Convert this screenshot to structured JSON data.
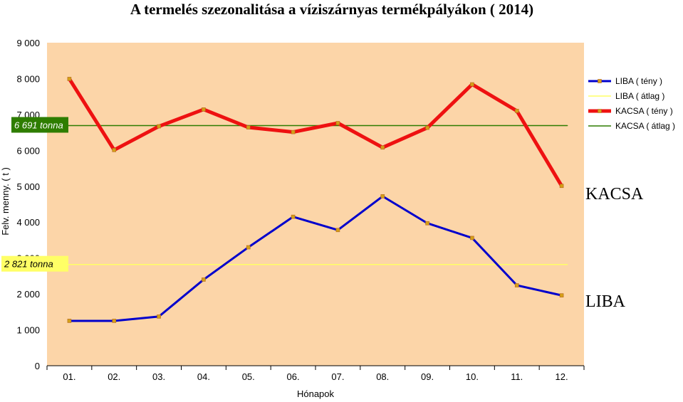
{
  "chart_data": {
    "type": "line",
    "title": "A termelés szezonalitása a víziszárnyas termékpályákon ( 2014)",
    "xlabel": "Hónapok",
    "ylabel": "Felv. menny. ( t )",
    "categories": [
      "01.",
      "02.",
      "03.",
      "04.",
      "05.",
      "06.",
      "07.",
      "08.",
      "09.",
      "10.",
      "11.",
      "12."
    ],
    "ylim": [
      0,
      9000
    ],
    "yticks": [
      0,
      1000,
      2000,
      3000,
      4000,
      5000,
      6000,
      7000,
      8000,
      9000
    ],
    "ytick_labels": [
      "0",
      "1 000",
      "2 000",
      "3 000",
      "4 000",
      "5 000",
      "6 000",
      "7 000",
      "8 000",
      "9 000"
    ],
    "plot_background": "#fcd5a8",
    "series": [
      {
        "name": "LIBA ( tény )",
        "values": [
          1250,
          1250,
          1370,
          2400,
          3300,
          4150,
          3780,
          4720,
          3970,
          3560,
          2240,
          1960
        ],
        "color": "#0000cc",
        "width": 3,
        "markers": true
      },
      {
        "name": "LIBA ( átlag )",
        "values": [
          2821,
          2821,
          2821,
          2821,
          2821,
          2821,
          2821,
          2821,
          2821,
          2821,
          2821,
          2821
        ],
        "color": "#ffff66",
        "width": 1.5,
        "markers": false
      },
      {
        "name": "KACSA ( tény )",
        "values": [
          7990,
          6010,
          6670,
          7140,
          6640,
          6510,
          6760,
          6080,
          6630,
          7840,
          7100,
          5010
        ],
        "color": "#ee1111",
        "width": 5,
        "markers": true
      },
      {
        "name": "KACSA ( átlag )",
        "values": [
          6691,
          6691,
          6691,
          6691,
          6691,
          6691,
          6691,
          6691,
          6691,
          6691,
          6691,
          6691
        ],
        "color": "#2e7d00",
        "width": 1.5,
        "markers": false
      }
    ],
    "legend_position": "top-right",
    "annotations": [
      {
        "text": "6 691 tonna",
        "value": 6691,
        "background": "#2e7d00",
        "text_color": "#ffffff"
      },
      {
        "text": "2 821 tonna",
        "value": 2821,
        "background": "#ffff66",
        "text_color": "#000000"
      }
    ],
    "series_labels": [
      {
        "text": "KACSA",
        "value": 4800
      },
      {
        "text": "LIBA",
        "value": 1800
      }
    ],
    "marker_color": "#d4a017"
  }
}
